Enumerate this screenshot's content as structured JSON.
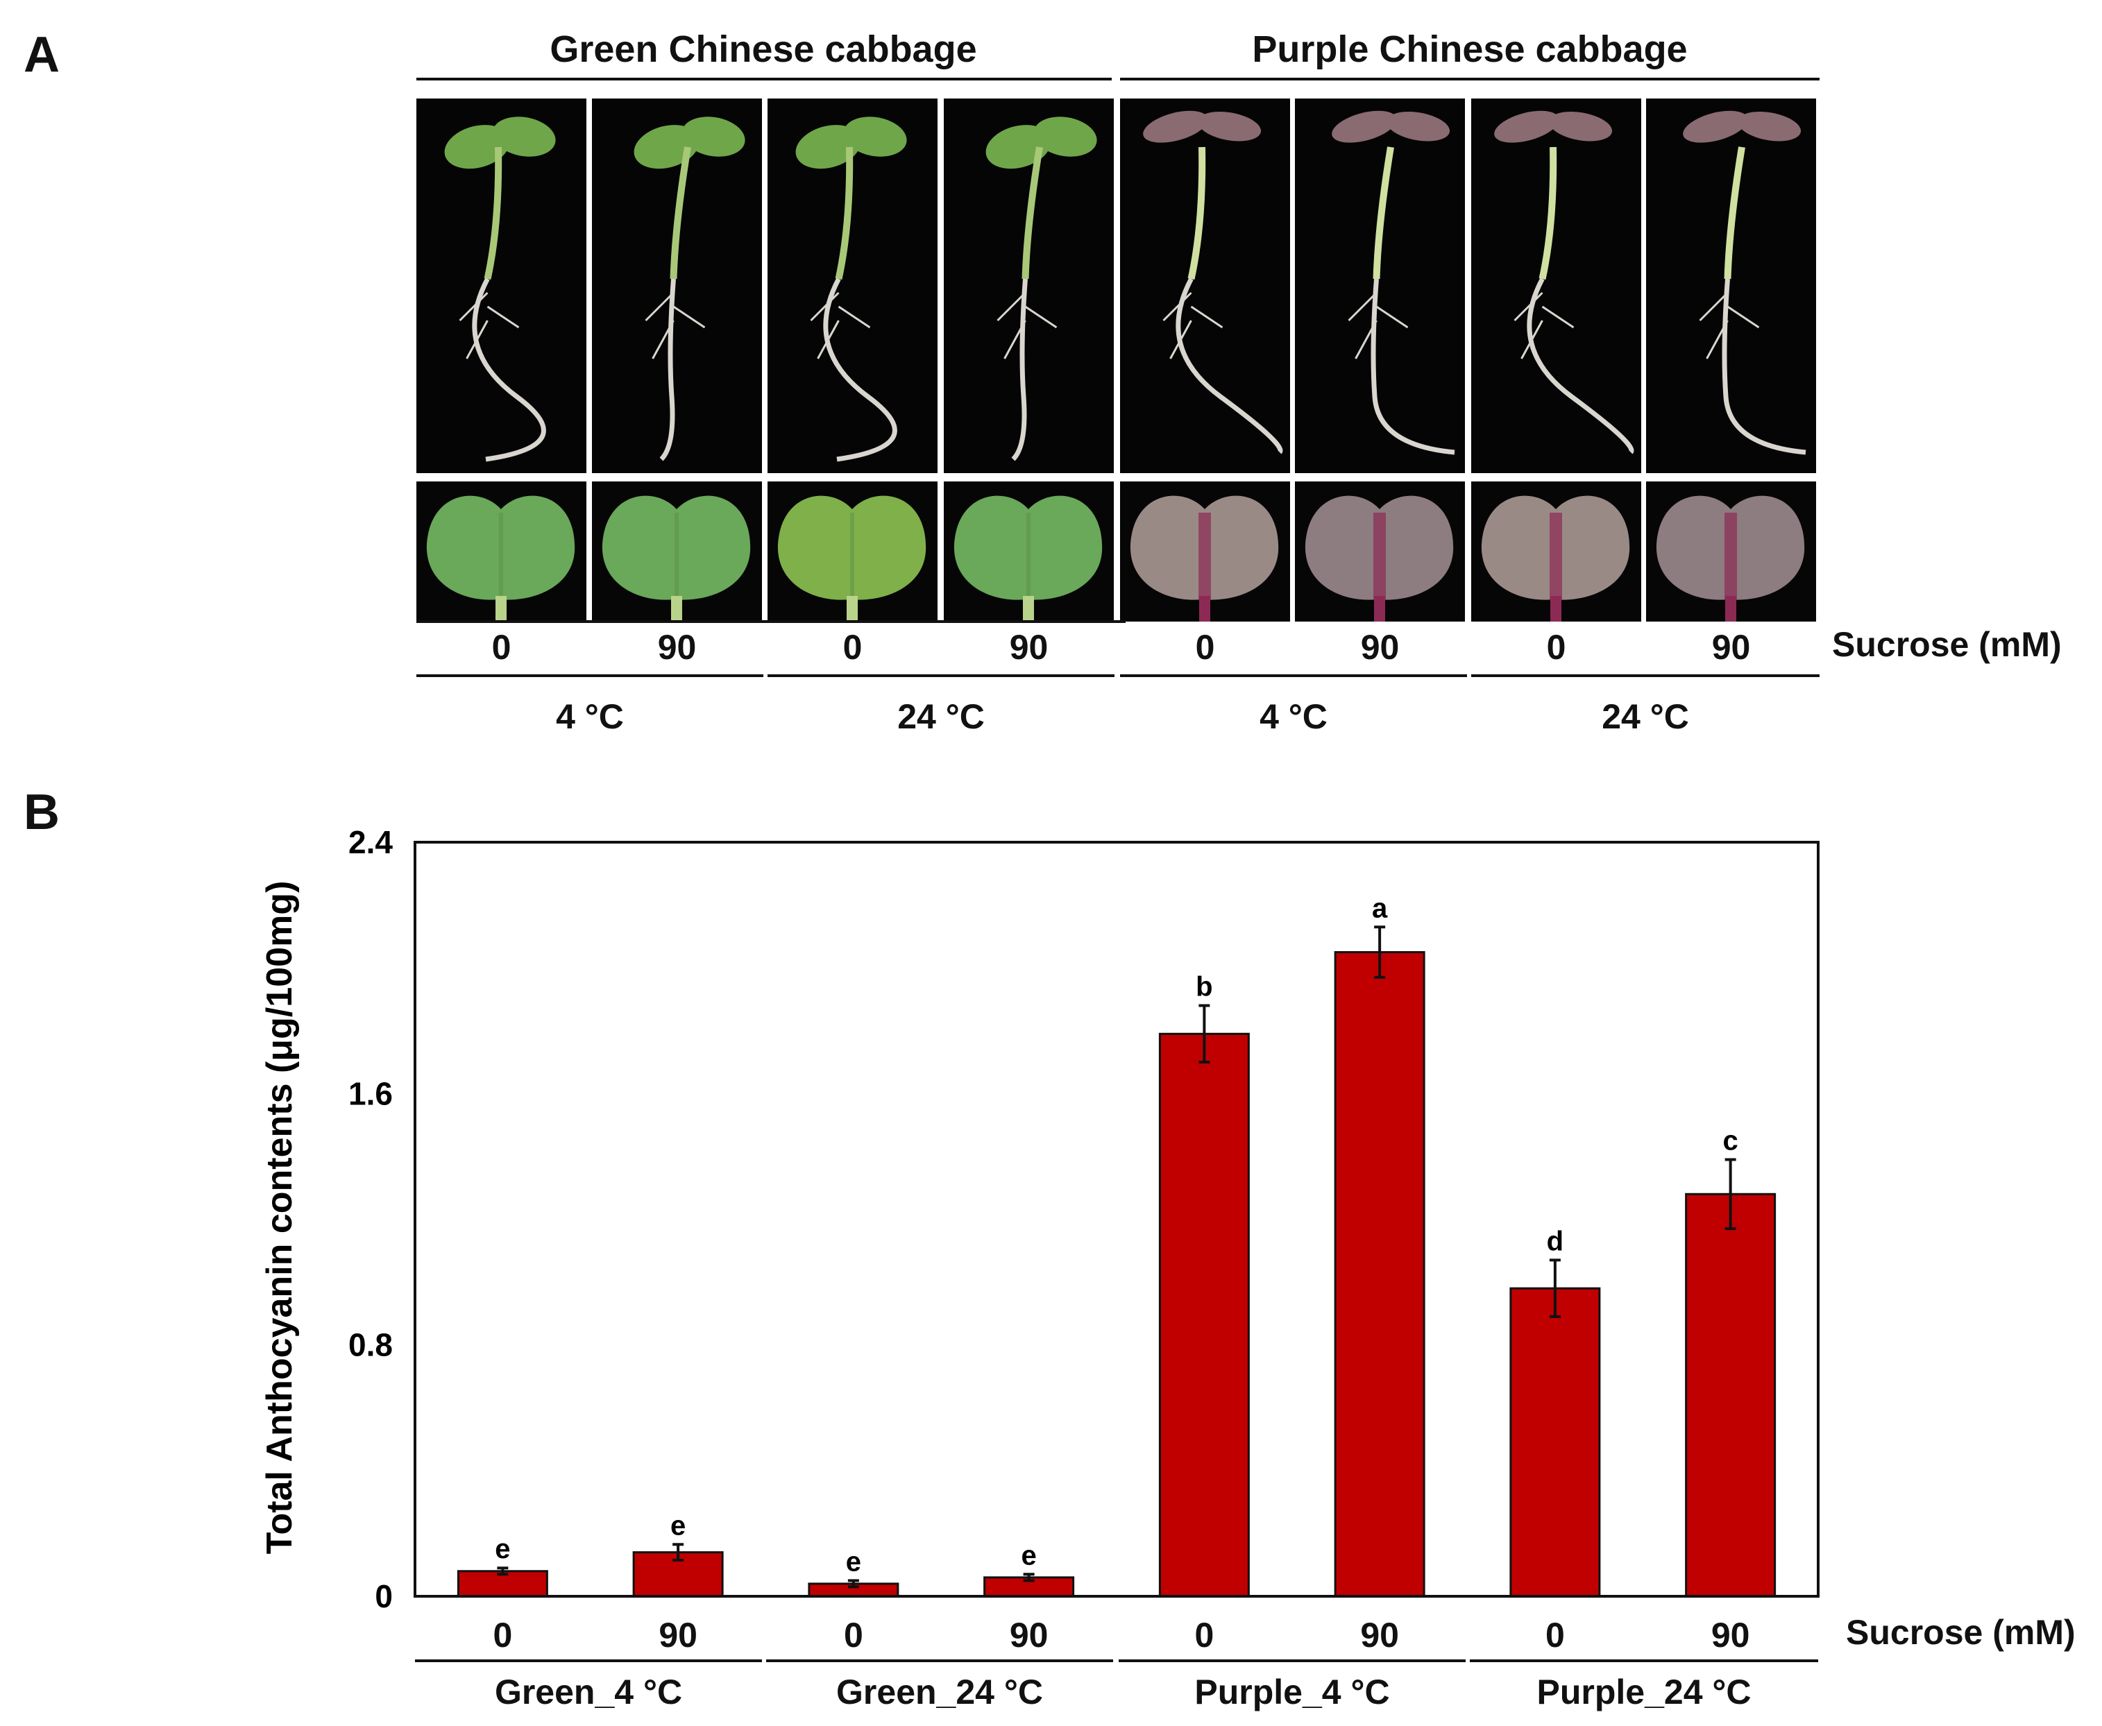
{
  "panel_a": {
    "letter": "A",
    "group_headers": [
      "Green Chinese cabbage",
      "Purple Chinese cabbage"
    ],
    "sucrose_values": [
      "0",
      "90",
      "0",
      "90",
      "0",
      "90",
      "0",
      "90"
    ],
    "sucrose_label": "Sucrose (mM)",
    "temperatures": [
      "4 °C",
      "24 °C",
      "4 °C",
      "24 °C"
    ],
    "colors": {
      "green_leaf": "#6fa64a",
      "green_stem": "#a8c878",
      "purple_leaf": "#8a6b72",
      "purple_tint": "#8c2a55",
      "root": "#d9d6cf"
    }
  },
  "panel_b": {
    "letter": "B",
    "sucrose_label": "Sucrose (mM)",
    "chart_data": {
      "type": "bar",
      "ylabel": "Total Anthocyanin contents (μg/100mg)",
      "ylim": [
        0,
        2.4
      ],
      "yticks": [
        "0",
        "0.8",
        "1.6",
        "2.4"
      ],
      "xtick_labels": [
        "0",
        "90",
        "0",
        "90",
        "0",
        "90",
        "0",
        "90"
      ],
      "group_labels": [
        "Green_4 °C",
        "Green_24 °C",
        "Purple_4 °C",
        "Purple_24 °C"
      ],
      "values": [
        0.08,
        0.14,
        0.04,
        0.06,
        1.79,
        2.05,
        0.98,
        1.28
      ],
      "errors": [
        0.01,
        0.025,
        0.01,
        0.01,
        0.09,
        0.08,
        0.09,
        0.11
      ],
      "significance_letters": [
        "e",
        "e",
        "e",
        "e",
        "b",
        "a",
        "d",
        "c"
      ],
      "bar_color": "#c00000",
      "grid": false
    }
  }
}
